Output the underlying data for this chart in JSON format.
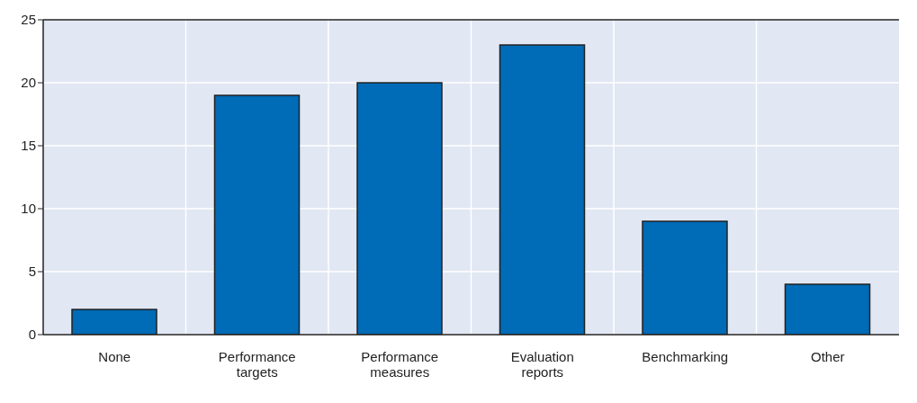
{
  "chart_data": {
    "type": "bar",
    "categories": [
      "None",
      "Performance targets",
      "Performance measures",
      "Evaluation reports",
      "Benchmarking",
      "Other"
    ],
    "values": [
      2,
      19,
      20,
      23,
      9,
      4
    ],
    "color": "#006bb6",
    "ylim": [
      0,
      25
    ],
    "yticks": [
      0,
      5,
      10,
      15,
      20,
      25
    ],
    "grid": true
  }
}
